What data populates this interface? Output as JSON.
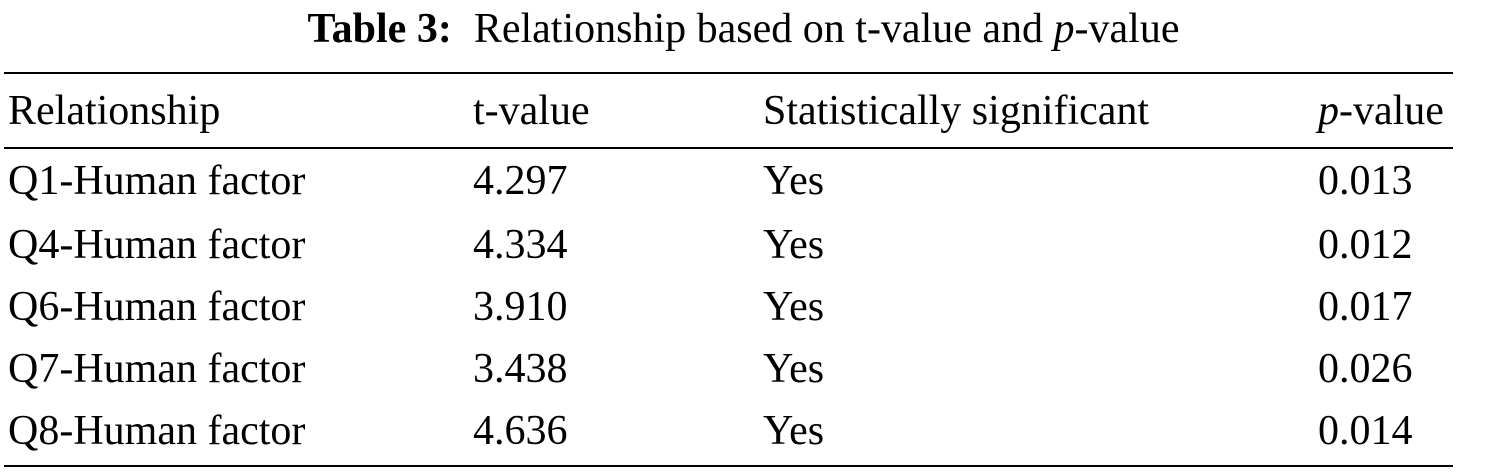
{
  "caption": {
    "label": "Table 3:",
    "text_before_italic": "Relationship based on t-value and ",
    "italic": "p",
    "text_after_italic": "-value"
  },
  "table": {
    "headers": {
      "relationship": "Relationship",
      "t_value": "t-value",
      "significant": "Statistically significant",
      "p_value_italic": "p",
      "p_value_rest": "-value"
    },
    "rows": [
      {
        "relationship": "Q1-Human factor",
        "t_value": "4.297",
        "significant": "Yes",
        "p_value": "0.013"
      },
      {
        "relationship": "Q4-Human factor",
        "t_value": "4.334",
        "significant": "Yes",
        "p_value": "0.012"
      },
      {
        "relationship": "Q6-Human factor",
        "t_value": "3.910",
        "significant": "Yes",
        "p_value": "0.017"
      },
      {
        "relationship": "Q7-Human factor",
        "t_value": "3.438",
        "significant": "Yes",
        "p_value": "0.026"
      },
      {
        "relationship": "Q8-Human factor",
        "t_value": "4.636",
        "significant": "Yes",
        "p_value": "0.014"
      }
    ]
  }
}
